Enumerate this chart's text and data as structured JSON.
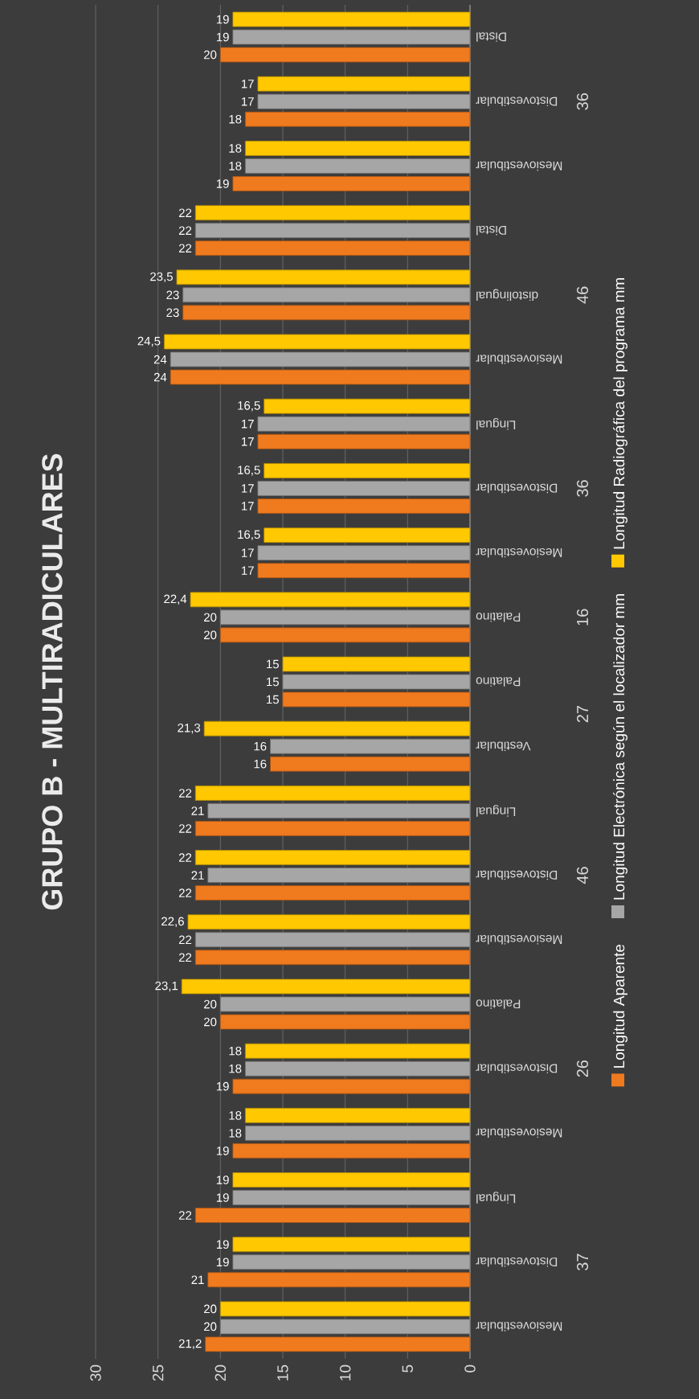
{
  "chart_data": {
    "type": "bar",
    "orientation": "horizontal",
    "title": "GRUPO B - MULTIRADICULARES",
    "categories": [
      "Distal",
      "Distovestibular",
      "Mesiovestibular",
      "Distal",
      "distolingual",
      "Mesiovestibular",
      "Lingual",
      "Distovestibular",
      "Mesiovestibular",
      "Palatino",
      "Palatino",
      "Vestibular",
      "Lingual",
      "Distovestibular",
      "Mesiovestibular",
      "Palatino",
      "Distovestibular",
      "Mesiovestibular",
      "Lingual",
      "Distovestibular",
      "Mesiovestibular"
    ],
    "series": [
      {
        "name": "Longitud Aparente",
        "color": "#f07a1e",
        "values": [
          20,
          18,
          19,
          22,
          23,
          24,
          17,
          17,
          17,
          20,
          15,
          16,
          22,
          22,
          22,
          20,
          19,
          19,
          22,
          21,
          21.2
        ],
        "value_labels": [
          "20",
          "18",
          "19",
          "22",
          "23",
          "24",
          "17",
          "17",
          "17",
          "20",
          "15",
          "16",
          "22",
          "22",
          "22",
          "20",
          "19",
          "19",
          "22",
          "21",
          "21,2"
        ]
      },
      {
        "name": "Longitud Electrónica según el localizador mm",
        "color": "#a6a6a6",
        "values": [
          19,
          17,
          18,
          22,
          23,
          24,
          17,
          17,
          17,
          20,
          15,
          16,
          21,
          21,
          22,
          20,
          18,
          18,
          19,
          19,
          20
        ],
        "value_labels": [
          "19",
          "17",
          "18",
          "22",
          "23",
          "24",
          "17",
          "17",
          "17",
          "20",
          "15",
          "16",
          "21",
          "21",
          "22",
          "20",
          "18",
          "18",
          "19",
          "19",
          "20"
        ]
      },
      {
        "name": "Longitud Radiográfica del programa mm",
        "color": "#ffc800",
        "values": [
          19,
          17,
          18,
          22,
          23.5,
          24.5,
          16.5,
          16.5,
          16.5,
          22.4,
          15,
          21.3,
          22,
          22,
          22.6,
          23.1,
          18,
          18,
          19,
          19,
          20
        ],
        "value_labels": [
          "19",
          "17",
          "18",
          "22",
          "23,5",
          "24,5",
          "16,5",
          "16,5",
          "16,5",
          "22,4",
          "15",
          "21,3",
          "22",
          "22",
          "22,6",
          "23,1",
          "18",
          "18",
          "19",
          "19",
          "20"
        ]
      }
    ],
    "annotations": [
      "36",
      "46",
      "36",
      "16",
      "27",
      "46",
      "26",
      "37"
    ],
    "xlim": [
      30,
      0
    ],
    "xticks": [
      0,
      5,
      10,
      15,
      20,
      25,
      30
    ],
    "grid": "x",
    "legend": "right"
  }
}
